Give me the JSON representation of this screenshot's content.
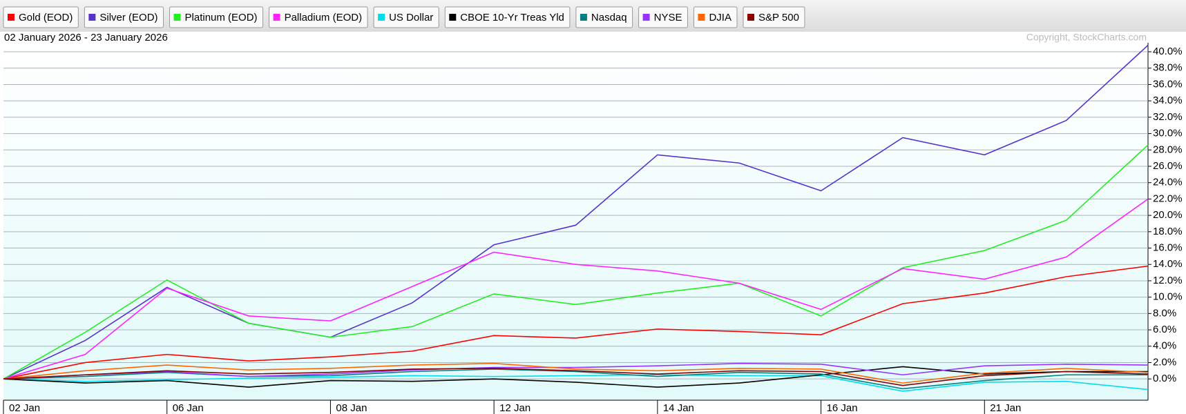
{
  "chart_data": {
    "type": "line",
    "subtitle": "02 January 2026 - 23 January 2026",
    "copyright": "Copyright, StockCharts.com",
    "categories": [
      "02 Jan",
      null,
      "06 Jan",
      null,
      "08 Jan",
      null,
      "12 Jan",
      null,
      "14 Jan",
      null,
      "16 Jan",
      null,
      "21 Jan",
      null,
      null
    ],
    "series": [
      {
        "name": "Gold (EOD)",
        "color": "#ff0000",
        "values": [
          0,
          2.0,
          3.0,
          2.2,
          2.7,
          3.4,
          5.3,
          5.0,
          6.1,
          5.8,
          5.4,
          9.2,
          10.5,
          12.5,
          13.8
        ]
      },
      {
        "name": "Silver (EOD)",
        "color": "#5533cc",
        "values": [
          0,
          4.7,
          11.2,
          6.8,
          5.1,
          9.3,
          16.4,
          18.8,
          27.4,
          26.4,
          23.0,
          29.5,
          27.4,
          31.6,
          40.8
        ]
      },
      {
        "name": "Platinum (EOD)",
        "color": "#22ee22",
        "values": [
          0,
          5.7,
          12.1,
          6.8,
          5.1,
          6.4,
          10.4,
          9.1,
          10.5,
          11.7,
          7.7,
          13.6,
          15.7,
          19.4,
          28.6
        ]
      },
      {
        "name": "Palladium (EOD)",
        "color": "#ff22ff",
        "values": [
          0,
          3.0,
          11.1,
          7.7,
          7.1,
          11.3,
          15.5,
          14.0,
          13.2,
          11.7,
          8.5,
          13.5,
          12.2,
          14.9,
          22.0
        ]
      },
      {
        "name": "US Dollar",
        "color": "#00ddee",
        "values": [
          0,
          -0.3,
          -0.1,
          0.1,
          0.2,
          0.4,
          0.3,
          0.4,
          0.5,
          0.4,
          0.4,
          -1.5,
          -0.4,
          -0.3,
          -1.3
        ]
      },
      {
        "name": "CBOE 10-Yr Treas Yld",
        "color": "#000000",
        "values": [
          0,
          -0.5,
          -0.2,
          -1.0,
          -0.2,
          -0.3,
          0.0,
          -0.4,
          -1.0,
          -0.5,
          0.5,
          1.5,
          0.6,
          0.9,
          0.9
        ]
      },
      {
        "name": "Nasdaq",
        "color": "#008080",
        "values": [
          0,
          0.3,
          0.8,
          0.3,
          0.4,
          0.9,
          1.2,
          0.9,
          0.3,
          0.8,
          0.6,
          -1.2,
          -0.2,
          0.5,
          0.5
        ]
      },
      {
        "name": "NYSE",
        "color": "#9933ff",
        "values": [
          0,
          0.5,
          0.9,
          0.3,
          0.6,
          1.1,
          1.4,
          1.4,
          1.6,
          1.9,
          1.8,
          0.5,
          1.6,
          1.8,
          1.7
        ]
      },
      {
        "name": "DJIA",
        "color": "#ff6600",
        "values": [
          0,
          1.0,
          1.7,
          1.1,
          1.3,
          1.7,
          1.9,
          1.2,
          1.0,
          1.3,
          1.2,
          -0.5,
          0.7,
          1.3,
          0.8
        ]
      },
      {
        "name": "S&P 500",
        "color": "#8b0000",
        "values": [
          0,
          0.5,
          1.0,
          0.6,
          0.8,
          1.2,
          1.3,
          1.0,
          0.6,
          1.0,
          0.9,
          -0.8,
          0.4,
          0.9,
          0.6
        ]
      }
    ],
    "ylim": [
      -2.6,
      41.1
    ],
    "yticks": [
      {
        "value": 0,
        "label": "0.0%"
      },
      {
        "value": 2,
        "label": "2.0%"
      },
      {
        "value": 4,
        "label": "4.0%"
      },
      {
        "value": 6,
        "label": "6.0%"
      },
      {
        "value": 8,
        "label": "8.0%"
      },
      {
        "value": 10,
        "label": "10.0%"
      },
      {
        "value": 12,
        "label": "12.0%"
      },
      {
        "value": 14,
        "label": "14.0%"
      },
      {
        "value": 16,
        "label": "16.0%"
      },
      {
        "value": 18,
        "label": "18.0%"
      },
      {
        "value": 20,
        "label": "20.0%"
      },
      {
        "value": 22,
        "label": "22.0%"
      },
      {
        "value": 24,
        "label": "24.0%"
      },
      {
        "value": 26,
        "label": "26.0%"
      },
      {
        "value": 28,
        "label": "28.0%"
      },
      {
        "value": 30,
        "label": "30.0%"
      },
      {
        "value": 32,
        "label": "32.0%"
      },
      {
        "value": 34,
        "label": "34.0%"
      },
      {
        "value": 36,
        "label": "36.0%"
      },
      {
        "value": 38,
        "label": "38.0%"
      },
      {
        "value": 40,
        "label": "40.0%"
      }
    ],
    "grid": true
  }
}
